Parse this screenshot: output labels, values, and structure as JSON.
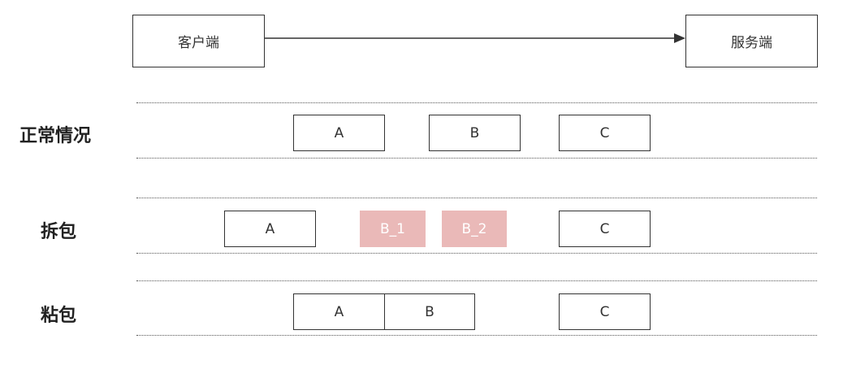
{
  "client": {
    "label": "客户端"
  },
  "server": {
    "label": "服务端"
  },
  "rows": {
    "normal": {
      "label": "正常情况",
      "packets": [
        "A",
        "B",
        "C"
      ]
    },
    "split": {
      "label": "拆包",
      "packets": [
        "A",
        "B_1",
        "B_2",
        "C"
      ]
    },
    "sticky": {
      "label": "粘包",
      "packets": [
        "A",
        "B",
        "C"
      ]
    }
  },
  "colors": {
    "split_fragment": "#eab9b8",
    "line": "#333333"
  }
}
